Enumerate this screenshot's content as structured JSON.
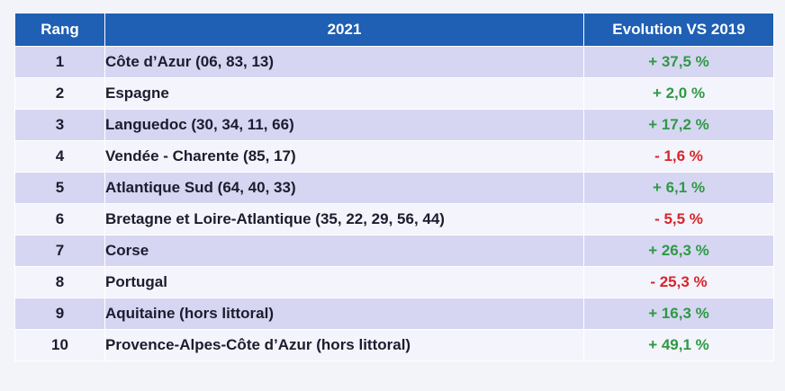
{
  "table": {
    "headers": {
      "rank": "Rang",
      "destination": "2021",
      "evolution": "Evolution VS 2019"
    },
    "colors": {
      "header_bg": "#1f5fb4",
      "row_odd_bg": "#d6d6f3",
      "row_even_bg": "#f4f4fc",
      "positive": "#2e9a43",
      "negative": "#d6262a"
    },
    "rows": [
      {
        "rank": "1",
        "destination": "Côte d’Azur (06, 83, 13)",
        "evolution": "+ 37,5 %",
        "trend": "positive"
      },
      {
        "rank": "2",
        "destination": "Espagne",
        "evolution": "+ 2,0 %",
        "trend": "positive"
      },
      {
        "rank": "3",
        "destination": "Languedoc (30, 34, 11, 66)",
        "evolution": "+ 17,2 %",
        "trend": "positive"
      },
      {
        "rank": "4",
        "destination": "Vendée - Charente (85, 17)",
        "evolution": "- 1,6 %",
        "trend": "negative"
      },
      {
        "rank": "5",
        "destination": "Atlantique Sud (64, 40, 33)",
        "evolution": "+ 6,1 %",
        "trend": "positive"
      },
      {
        "rank": "6",
        "destination": "Bretagne et Loire-Atlantique (35, 22, 29, 56, 44)",
        "evolution": "- 5,5 %",
        "trend": "negative"
      },
      {
        "rank": "7",
        "destination": "Corse",
        "evolution": "+ 26,3 %",
        "trend": "positive"
      },
      {
        "rank": "8",
        "destination": "Portugal",
        "evolution": "- 25,3 %",
        "trend": "negative"
      },
      {
        "rank": "9",
        "destination": "Aquitaine (hors littoral)",
        "evolution": "+ 16,3 %",
        "trend": "positive"
      },
      {
        "rank": "10",
        "destination": "Provence-Alpes-Côte d’Azur (hors littoral)",
        "evolution": "+ 49,1 %",
        "trend": "positive"
      }
    ]
  }
}
